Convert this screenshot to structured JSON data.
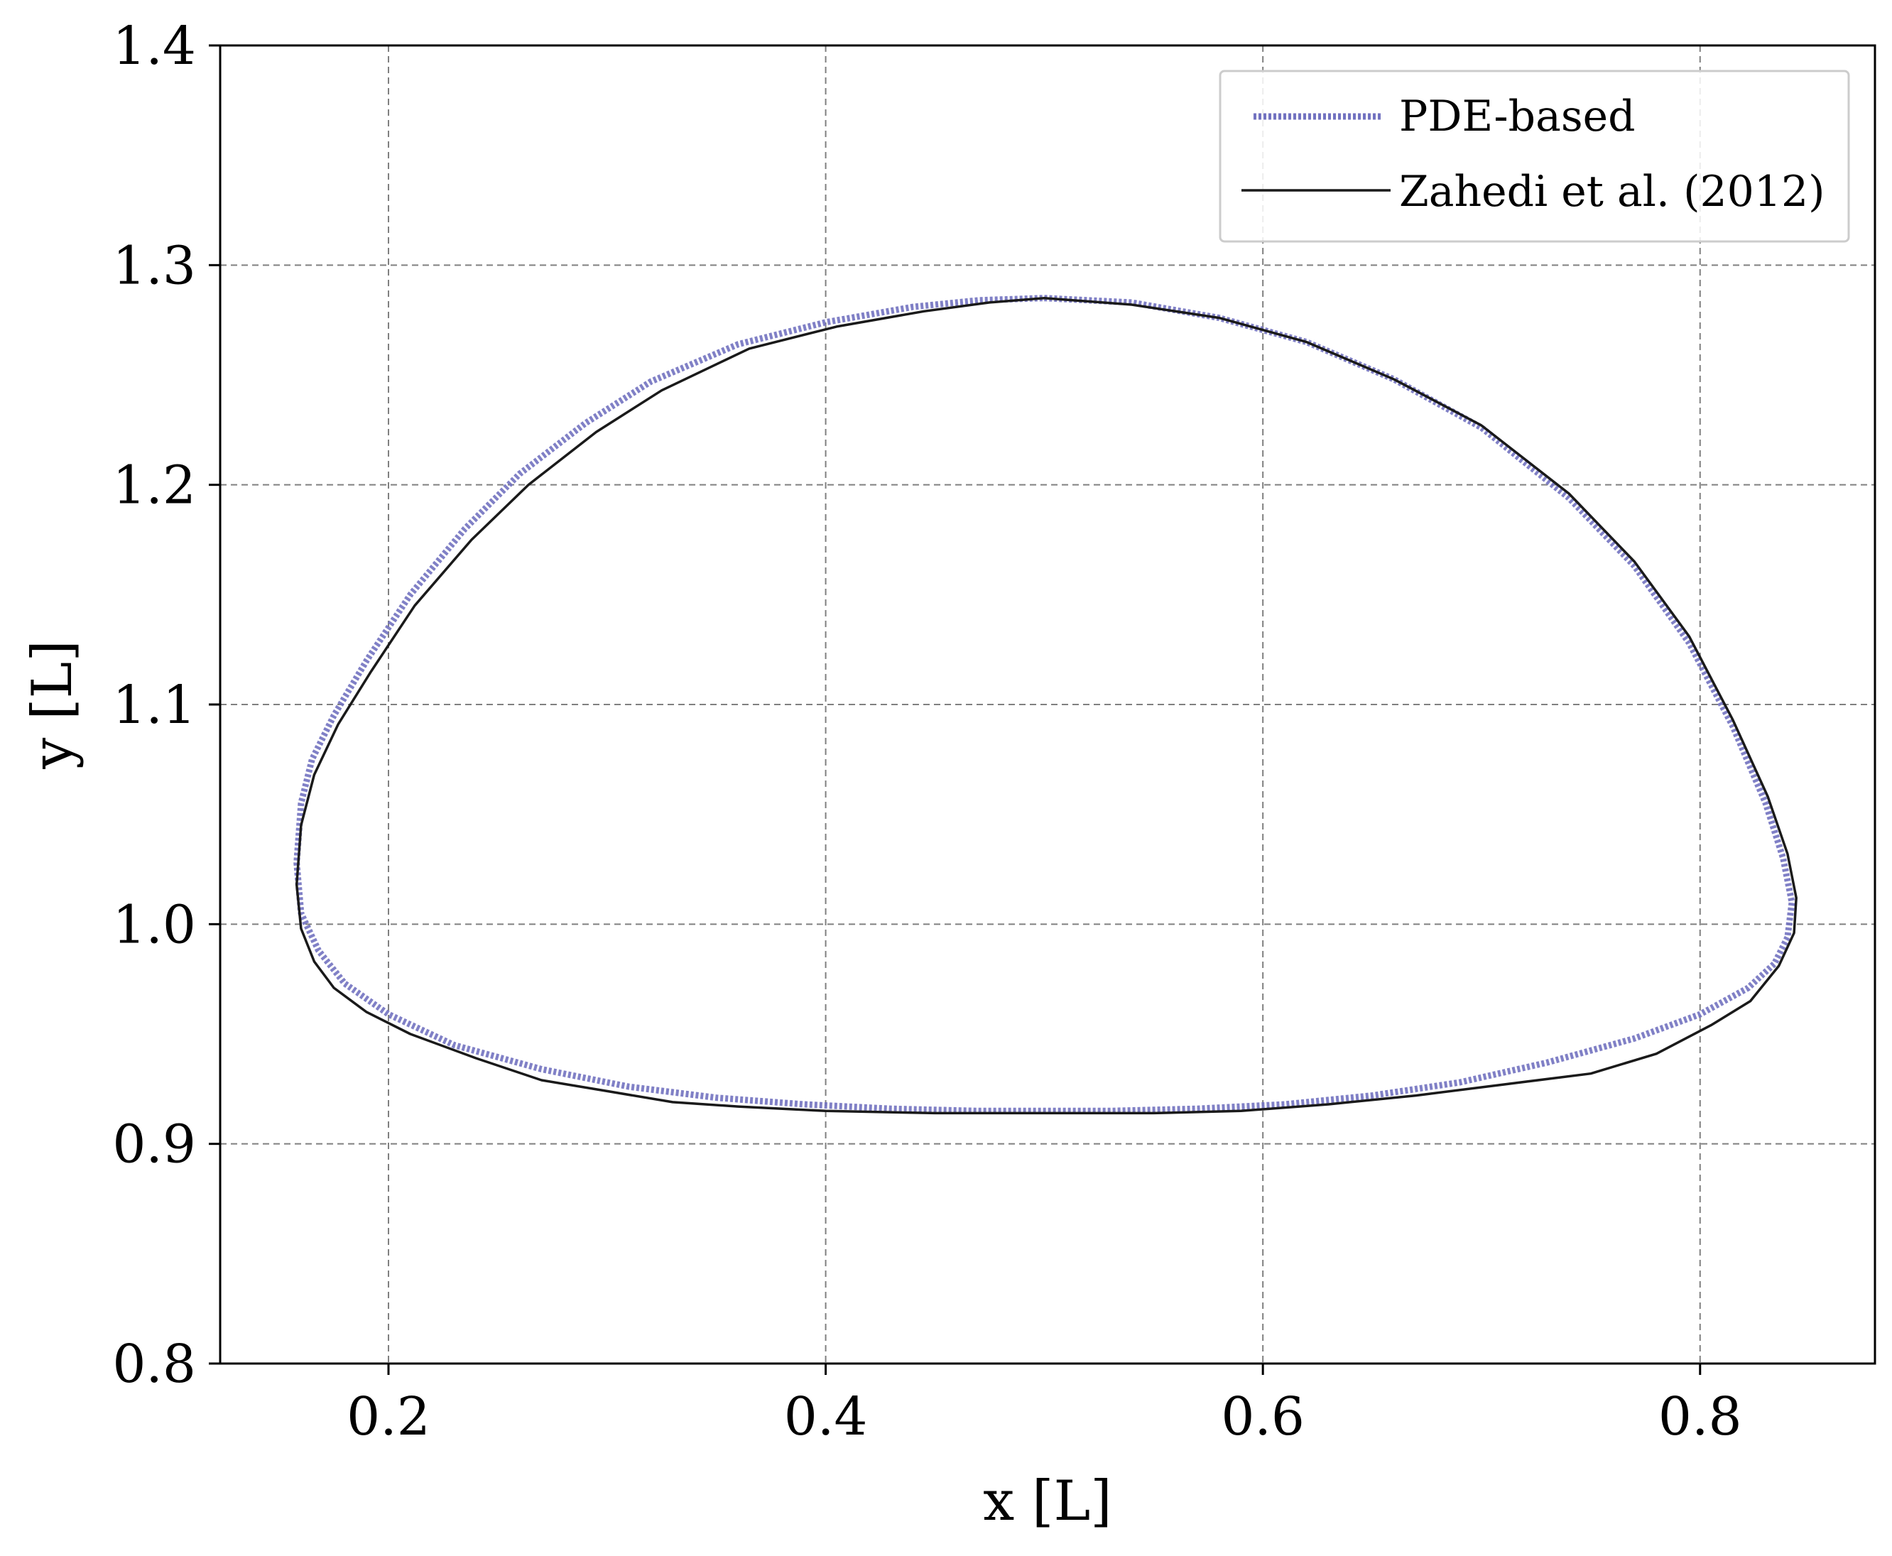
{
  "chart_data": {
    "type": "line",
    "title": "",
    "xlabel": "x [L]",
    "ylabel": "y [L]",
    "xlim": [
      0.123,
      0.88
    ],
    "ylim": [
      0.8,
      1.4
    ],
    "xticks": [
      "0.2",
      "0.4",
      "0.6",
      "0.8"
    ],
    "yticks": [
      "0.8",
      "0.9",
      "1.0",
      "1.1",
      "1.2",
      "1.3",
      "1.4"
    ],
    "grid": true,
    "legend_position": "top-right",
    "series": [
      {
        "name": "PDE-based",
        "color": "#7272c0",
        "style": "dotted-thick",
        "x": [
          0.5,
          0.54,
          0.58,
          0.62,
          0.66,
          0.7,
          0.74,
          0.77,
          0.795,
          0.815,
          0.83,
          0.838,
          0.842,
          0.84,
          0.834,
          0.822,
          0.8,
          0.77,
          0.73,
          0.69,
          0.65,
          0.61,
          0.57,
          0.53,
          0.5,
          0.47,
          0.43,
          0.39,
          0.35,
          0.31,
          0.27,
          0.23,
          0.2,
          0.18,
          0.168,
          0.16,
          0.158,
          0.16,
          0.165,
          0.175,
          0.19,
          0.21,
          0.235,
          0.26,
          0.29,
          0.32,
          0.36,
          0.4,
          0.44,
          0.47,
          0.5
        ],
        "y": [
          1.285,
          1.283,
          1.276,
          1.265,
          1.248,
          1.226,
          1.194,
          1.163,
          1.128,
          1.09,
          1.055,
          1.03,
          1.01,
          0.994,
          0.982,
          0.971,
          0.959,
          0.948,
          0.937,
          0.928,
          0.922,
          0.918,
          0.916,
          0.915,
          0.915,
          0.915,
          0.916,
          0.918,
          0.921,
          0.926,
          0.934,
          0.945,
          0.959,
          0.973,
          0.988,
          1.005,
          1.028,
          1.055,
          1.075,
          1.095,
          1.12,
          1.15,
          1.18,
          1.205,
          1.228,
          1.247,
          1.264,
          1.274,
          1.281,
          1.284,
          1.285
        ]
      },
      {
        "name": "Zahedi et al. (2012)",
        "color": "#1a1a1a",
        "style": "solid",
        "x": [
          0.5,
          0.54,
          0.58,
          0.62,
          0.66,
          0.7,
          0.74,
          0.77,
          0.795,
          0.815,
          0.831,
          0.84,
          0.844,
          0.843,
          0.836,
          0.823,
          0.805,
          0.78,
          0.75,
          0.71,
          0.67,
          0.63,
          0.59,
          0.55,
          0.5,
          0.45,
          0.4,
          0.36,
          0.33,
          0.3,
          0.27,
          0.24,
          0.21,
          0.19,
          0.175,
          0.166,
          0.16,
          0.158,
          0.16,
          0.166,
          0.177,
          0.192,
          0.212,
          0.238,
          0.264,
          0.295,
          0.325,
          0.365,
          0.405,
          0.445,
          0.475,
          0.5
        ],
        "y": [
          1.285,
          1.282,
          1.276,
          1.265,
          1.248,
          1.227,
          1.196,
          1.165,
          1.131,
          1.093,
          1.058,
          1.032,
          1.012,
          0.996,
          0.981,
          0.965,
          0.954,
          0.941,
          0.932,
          0.927,
          0.922,
          0.918,
          0.915,
          0.914,
          0.914,
          0.914,
          0.915,
          0.917,
          0.919,
          0.924,
          0.929,
          0.939,
          0.95,
          0.96,
          0.971,
          0.983,
          0.998,
          1.018,
          1.045,
          1.068,
          1.091,
          1.115,
          1.145,
          1.175,
          1.2,
          1.224,
          1.243,
          1.262,
          1.272,
          1.279,
          1.283,
          1.285
        ]
      }
    ]
  }
}
